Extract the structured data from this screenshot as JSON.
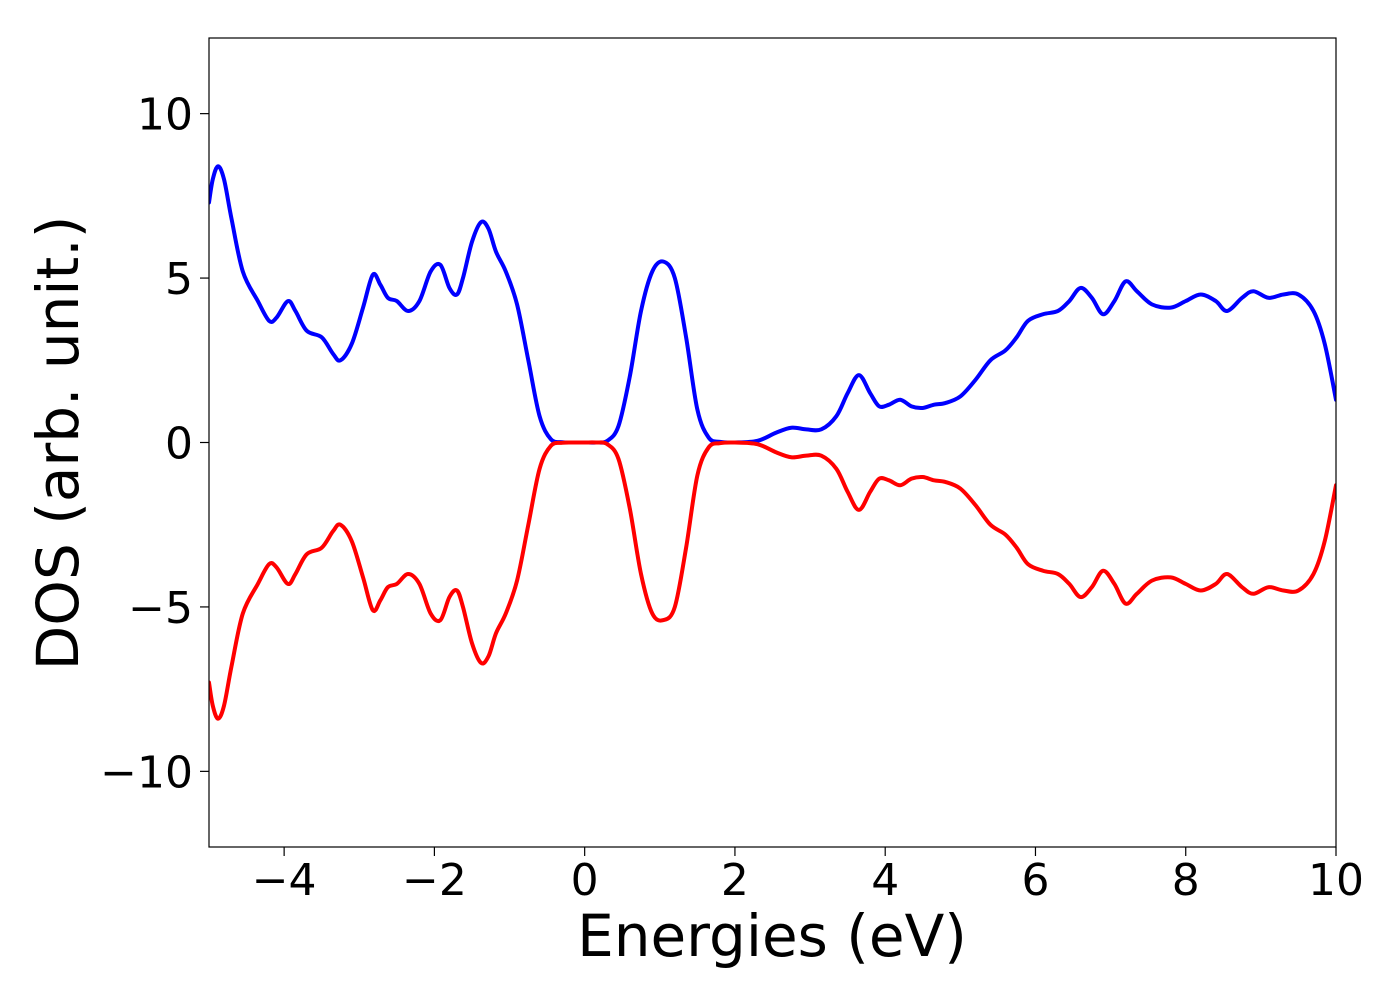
{
  "chart_data": {
    "type": "line",
    "title": "",
    "xlabel": "Energies (eV)",
    "ylabel": "DOS (arb. unit.)",
    "xlim": [
      -5,
      10
    ],
    "ylim": [
      -12.3,
      12.3
    ],
    "x_ticks": [
      -4,
      -2,
      0,
      2,
      4,
      6,
      8,
      10
    ],
    "x_tick_labels": [
      "−4",
      "−2",
      "0",
      "2",
      "4",
      "6",
      "8",
      "10"
    ],
    "y_ticks": [
      -10,
      -5,
      0,
      5,
      10
    ],
    "y_tick_labels": [
      "−10",
      "−5",
      "0",
      "5",
      "10"
    ],
    "grid": false,
    "series": [
      {
        "color": "#0000ff",
        "x": [
          -5.0,
          -4.95,
          -4.88,
          -4.8,
          -4.7,
          -4.55,
          -4.35,
          -4.2,
          -4.1,
          -3.95,
          -3.85,
          -3.7,
          -3.5,
          -3.35,
          -3.25,
          -3.1,
          -2.95,
          -2.82,
          -2.72,
          -2.62,
          -2.5,
          -2.35,
          -2.2,
          -2.05,
          -1.92,
          -1.8,
          -1.7,
          -1.62,
          -1.5,
          -1.38,
          -1.28,
          -1.18,
          -1.05,
          -0.9,
          -0.75,
          -0.6,
          -0.45,
          -0.3,
          -0.15,
          0.0,
          0.15,
          0.3,
          0.45,
          0.6,
          0.75,
          0.9,
          1.05,
          1.2,
          1.35,
          1.5,
          1.65,
          1.8,
          2.0,
          2.3,
          2.55,
          2.75,
          2.95,
          3.15,
          3.35,
          3.5,
          3.65,
          3.8,
          3.92,
          4.05,
          4.2,
          4.35,
          4.5,
          4.65,
          4.8,
          5.0,
          5.2,
          5.4,
          5.6,
          5.75,
          5.9,
          6.1,
          6.3,
          6.45,
          6.6,
          6.75,
          6.9,
          7.05,
          7.2,
          7.35,
          7.55,
          7.8,
          8.0,
          8.2,
          8.4,
          8.55,
          8.75,
          8.9,
          9.1,
          9.3,
          9.5,
          9.7,
          9.85,
          10.0
        ],
        "y": [
          7.3,
          8.0,
          8.4,
          8.0,
          6.8,
          5.2,
          4.3,
          3.7,
          3.8,
          4.3,
          4.0,
          3.4,
          3.2,
          2.7,
          2.5,
          3.0,
          4.1,
          5.1,
          4.8,
          4.4,
          4.3,
          4.0,
          4.3,
          5.2,
          5.4,
          4.7,
          4.5,
          5.0,
          6.1,
          6.7,
          6.5,
          5.8,
          5.2,
          4.2,
          2.5,
          0.8,
          0.1,
          0.01,
          0.0,
          0.0,
          0.0,
          0.05,
          0.5,
          2.0,
          4.0,
          5.2,
          5.5,
          5.0,
          3.2,
          1.0,
          0.15,
          0.02,
          0.0,
          0.05,
          0.3,
          0.45,
          0.4,
          0.4,
          0.8,
          1.5,
          2.05,
          1.5,
          1.1,
          1.15,
          1.3,
          1.1,
          1.05,
          1.15,
          1.2,
          1.4,
          1.9,
          2.5,
          2.8,
          3.2,
          3.7,
          3.9,
          4.0,
          4.3,
          4.7,
          4.4,
          3.9,
          4.3,
          4.9,
          4.6,
          4.2,
          4.1,
          4.3,
          4.5,
          4.3,
          4.0,
          4.4,
          4.6,
          4.4,
          4.5,
          4.5,
          4.0,
          3.0,
          1.3
        ]
      },
      {
        "color": "#ff0000",
        "x": [
          -5.0,
          -4.95,
          -4.88,
          -4.8,
          -4.7,
          -4.55,
          -4.35,
          -4.2,
          -4.1,
          -3.95,
          -3.85,
          -3.7,
          -3.5,
          -3.35,
          -3.25,
          -3.1,
          -2.95,
          -2.82,
          -2.72,
          -2.62,
          -2.5,
          -2.35,
          -2.2,
          -2.05,
          -1.92,
          -1.8,
          -1.7,
          -1.62,
          -1.5,
          -1.38,
          -1.28,
          -1.18,
          -1.05,
          -0.9,
          -0.75,
          -0.6,
          -0.45,
          -0.3,
          -0.15,
          0.0,
          0.15,
          0.3,
          0.45,
          0.6,
          0.75,
          0.9,
          1.05,
          1.2,
          1.35,
          1.5,
          1.65,
          1.8,
          2.0,
          2.3,
          2.55,
          2.75,
          2.95,
          3.15,
          3.35,
          3.5,
          3.65,
          3.8,
          3.92,
          4.05,
          4.2,
          4.35,
          4.5,
          4.65,
          4.8,
          5.0,
          5.2,
          5.4,
          5.6,
          5.75,
          5.9,
          6.1,
          6.3,
          6.45,
          6.6,
          6.75,
          6.9,
          7.05,
          7.2,
          7.35,
          7.55,
          7.8,
          8.0,
          8.2,
          8.4,
          8.55,
          8.75,
          8.9,
          9.1,
          9.3,
          9.5,
          9.7,
          9.85,
          10.0
        ],
        "y": [
          -7.3,
          -8.0,
          -8.4,
          -8.0,
          -6.8,
          -5.2,
          -4.3,
          -3.7,
          -3.8,
          -4.3,
          -4.0,
          -3.4,
          -3.2,
          -2.7,
          -2.5,
          -3.0,
          -4.1,
          -5.1,
          -4.8,
          -4.4,
          -4.3,
          -4.0,
          -4.3,
          -5.2,
          -5.4,
          -4.7,
          -4.5,
          -5.0,
          -6.1,
          -6.7,
          -6.5,
          -5.8,
          -5.2,
          -4.2,
          -2.5,
          -0.8,
          -0.1,
          -0.01,
          0.0,
          0.0,
          0.0,
          -0.05,
          -0.5,
          -2.0,
          -4.0,
          -5.2,
          -5.4,
          -5.0,
          -3.2,
          -1.0,
          -0.15,
          -0.02,
          0.0,
          -0.05,
          -0.3,
          -0.45,
          -0.4,
          -0.4,
          -0.8,
          -1.5,
          -2.05,
          -1.5,
          -1.1,
          -1.15,
          -1.3,
          -1.1,
          -1.05,
          -1.15,
          -1.2,
          -1.4,
          -1.9,
          -2.5,
          -2.8,
          -3.2,
          -3.7,
          -3.9,
          -4.0,
          -4.3,
          -4.7,
          -4.4,
          -3.9,
          -4.3,
          -4.9,
          -4.6,
          -4.2,
          -4.1,
          -4.3,
          -4.5,
          -4.3,
          -4.0,
          -4.4,
          -4.6,
          -4.4,
          -4.5,
          -4.5,
          -4.0,
          -3.0,
          -1.3
        ]
      }
    ]
  }
}
